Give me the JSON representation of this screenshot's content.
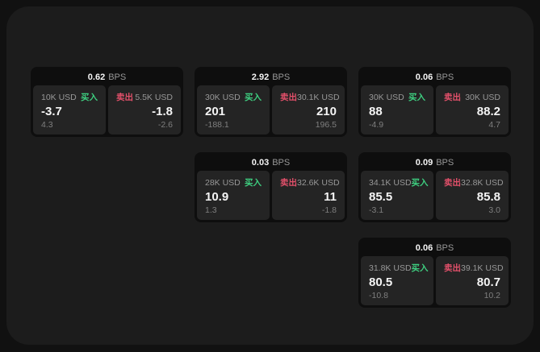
{
  "labels": {
    "buy": "买入",
    "sell": "卖出",
    "bps_unit": "BPS"
  },
  "colors": {
    "page_bg": "#111111",
    "panel_bg": "#1c1c1c",
    "card_bg": "#0e0e0e",
    "tile_bg": "#242424",
    "text_primary": "#f5f5f5",
    "text_muted": "#989898",
    "text_delta": "#7f7f7f",
    "buy_green": "#3ecf80",
    "sell_red": "#e2506a"
  },
  "cards": [
    {
      "bps": "0.62",
      "row": 1,
      "col": 1,
      "buy": {
        "amount": "10K USD",
        "price": "-3.7",
        "delta": "4.3"
      },
      "sell": {
        "amount": "5.5K USD",
        "price": "-1.8",
        "delta": "-2.6"
      }
    },
    {
      "bps": "2.92",
      "row": 1,
      "col": 2,
      "buy": {
        "amount": "30K USD",
        "price": "201",
        "delta": "-188.1"
      },
      "sell": {
        "amount": "30.1K USD",
        "price": "210",
        "delta": "196.5"
      }
    },
    {
      "bps": "0.06",
      "row": 1,
      "col": 3,
      "buy": {
        "amount": "30K USD",
        "price": "88",
        "delta": "-4.9"
      },
      "sell": {
        "amount": "30K USD",
        "price": "88.2",
        "delta": "4.7"
      }
    },
    {
      "bps": "0.03",
      "row": 2,
      "col": 2,
      "buy": {
        "amount": "28K USD",
        "price": "10.9",
        "delta": "1.3"
      },
      "sell": {
        "amount": "32.6K USD",
        "price": "11",
        "delta": "-1.8"
      }
    },
    {
      "bps": "0.09",
      "row": 2,
      "col": 3,
      "buy": {
        "amount": "34.1K USD",
        "price": "85.5",
        "delta": "-3.1"
      },
      "sell": {
        "amount": "32.8K USD",
        "price": "85.8",
        "delta": "3.0"
      }
    },
    {
      "bps": "0.06",
      "row": 3,
      "col": 3,
      "buy": {
        "amount": "31.8K USD",
        "price": "80.5",
        "delta": "-10.8"
      },
      "sell": {
        "amount": "39.1K USD",
        "price": "80.7",
        "delta": "10.2"
      }
    }
  ]
}
